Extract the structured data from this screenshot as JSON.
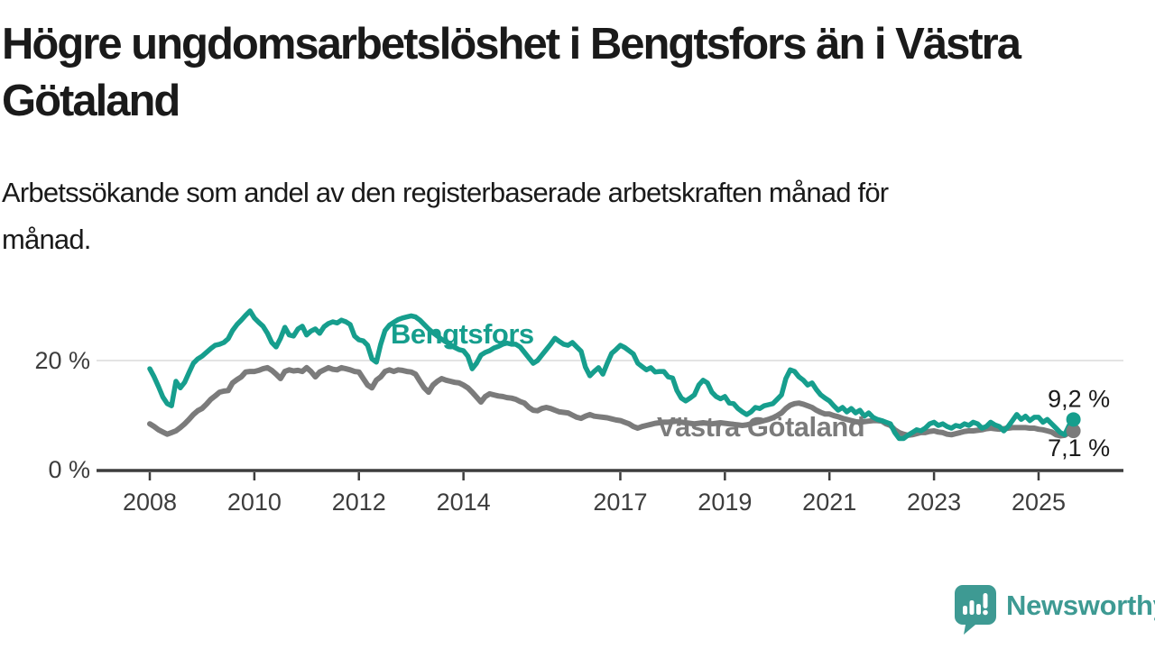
{
  "title": {
    "line1": "Högre ungdomsarbetslöshet i Bengtsfors än i Västra",
    "line2": "Götaland"
  },
  "subtitle": {
    "line1": "Arbetssökande som andel av den registerbaserade arbetskraften månad för",
    "line2": "månad."
  },
  "colors": {
    "teal": "#169e8d",
    "gray": "#7b7b7b",
    "axis": "#3d3d3d",
    "grid": "#dcdcdc",
    "value_label": "#1a1a1a",
    "logo": "#3e9a93"
  },
  "chart_data": {
    "type": "line",
    "unit": "%",
    "frequency": "monthly",
    "x_start": {
      "year": 2008,
      "month": 1
    },
    "x_end": {
      "year": 2025,
      "month": 9
    },
    "ylim": [
      0,
      30
    ],
    "grid_values": [
      20
    ],
    "y_axis_labels": [
      {
        "value": 20,
        "label": "20 %"
      },
      {
        "value": 0,
        "label": "0 %"
      }
    ],
    "x_ticks": [
      {
        "year": 2008,
        "label": "2008"
      },
      {
        "year": 2010,
        "label": "2010"
      },
      {
        "year": 2012,
        "label": "2012"
      },
      {
        "year": 2014,
        "label": "2014"
      },
      {
        "year": 2017,
        "label": "2017"
      },
      {
        "year": 2019,
        "label": "2019"
      },
      {
        "year": 2021,
        "label": "2021"
      },
      {
        "year": 2023,
        "label": "2023"
      },
      {
        "year": 2025,
        "label": "2025"
      }
    ],
    "series": [
      {
        "name": "Västra Götaland",
        "color": "#7b7b7b",
        "end_value": 7.1,
        "end_label": "7,1 %",
        "values": [
          8.4,
          7.9,
          7.3,
          6.9,
          6.5,
          6.8,
          7.1,
          7.7,
          8.4,
          9.2,
          10.1,
          10.8,
          11.2,
          12,
          12.9,
          13.5,
          14.2,
          14.4,
          14.5,
          15.9,
          16.5,
          17,
          17.9,
          18,
          18,
          18.2,
          18.5,
          18.7,
          18.2,
          17.5,
          16.7,
          18,
          18.3,
          18.1,
          18.2,
          18,
          18.7,
          18,
          17,
          17.9,
          18.3,
          18.7,
          18.4,
          18.3,
          18.7,
          18.5,
          18.3,
          18,
          17.9,
          16.7,
          15.5,
          15,
          16.4,
          17,
          18,
          18.3,
          18,
          18.3,
          18.2,
          18,
          17.9,
          17.5,
          16.2,
          15,
          14.2,
          15.5,
          16.2,
          16.7,
          16.4,
          16.2,
          16,
          15.9,
          15.5,
          15,
          14.2,
          13.3,
          12.4,
          13.4,
          13.9,
          13.7,
          13.5,
          13.4,
          13.2,
          13.1,
          12.9,
          12.5,
          12.2,
          11.4,
          10.9,
          10.8,
          11.2,
          11.4,
          11.2,
          10.9,
          10.6,
          10.5,
          10.4,
          10,
          9.6,
          9.4,
          9.8,
          10.1,
          9.8,
          9.7,
          9.6,
          9.5,
          9.3,
          9.1,
          9,
          8.7,
          8.4,
          7.9,
          7.6,
          7.9,
          8.1,
          8.3,
          8.5,
          8.6,
          8.7,
          8.7,
          8.8,
          8.9,
          8.7,
          8.6,
          8.5,
          8.4,
          8.5,
          8.6,
          8.5,
          8.4,
          8.5,
          8.6,
          8.5,
          8.4,
          8.3,
          8.2,
          8.1,
          8.2,
          8.4,
          8.6,
          8.8,
          9,
          9.2,
          9.5,
          9.9,
          10.4,
          11.2,
          11.8,
          12.1,
          12.2,
          12,
          11.7,
          11.4,
          10.9,
          10.5,
          10.2,
          10.2,
          9.9,
          9.7,
          9.4,
          9.2,
          9,
          8.8,
          8.7,
          8.8,
          8.9,
          9,
          9,
          8.9,
          8.4,
          8.1,
          7.3,
          6.8,
          6.5,
          6.3,
          6.4,
          6.6,
          6.8,
          6.8,
          7,
          7.1,
          6.9,
          6.8,
          6.5,
          6.4,
          6.6,
          6.8,
          7,
          7.1,
          7.1,
          7.2,
          7.3,
          7.5,
          7.6,
          7.5,
          7.4,
          7.5,
          7.6,
          7.7,
          7.7,
          7.7,
          7.7,
          7.6,
          7.6,
          7.4,
          7.3,
          7.1,
          6.9,
          6.4,
          6.2,
          6.3,
          6.8,
          7.1
        ]
      },
      {
        "name": "Bengtsfors",
        "color": "#169e8d",
        "end_value": 9.2,
        "end_label": "9,2 %",
        "values": [
          18.5,
          17,
          15.2,
          13.3,
          12.1,
          11.7,
          16.2,
          15,
          16,
          17.8,
          19.5,
          20.3,
          20.8,
          21.5,
          22.2,
          22.8,
          23,
          23.3,
          24,
          25.5,
          26.6,
          27.4,
          28.3,
          29.1,
          27.8,
          27,
          26.3,
          25,
          23.3,
          22.5,
          24.1,
          26.1,
          24.7,
          24.5,
          25.8,
          26.3,
          24.7,
          25.4,
          25.8,
          25,
          26.2,
          26.8,
          27.1,
          26.9,
          27.4,
          27.1,
          26.6,
          24.5,
          23.8,
          23.6,
          22.8,
          20.3,
          19.7,
          23,
          25.5,
          26.5,
          27,
          27.5,
          27.8,
          28,
          28.2,
          28,
          27.4,
          26.6,
          25.8,
          25.1,
          24.5,
          23.9,
          23.4,
          22.9,
          22.4,
          22,
          21.8,
          20.8,
          18.5,
          19.5,
          21,
          21.5,
          21.8,
          22.3,
          22.6,
          23,
          23.2,
          23,
          23,
          22.5,
          21.5,
          20.5,
          19.5,
          20,
          21,
          22,
          23,
          24.1,
          23.5,
          23,
          22.8,
          23.3,
          22.5,
          21.7,
          18.8,
          17.2,
          18,
          18.7,
          17.5,
          19.5,
          21.3,
          22,
          22.8,
          22.4,
          21.8,
          21.2,
          19.5,
          18.9,
          18.3,
          18.7,
          17.9,
          18,
          18,
          17,
          16.8,
          14.5,
          13.1,
          12.6,
          13.1,
          13.7,
          15.5,
          16.4,
          15.9,
          14.2,
          13.4,
          13,
          13.4,
          12.2,
          12.1,
          11.2,
          10.6,
          10.1,
          10.6,
          11.4,
          11.2,
          11.7,
          11.9,
          12.1,
          12.9,
          13.7,
          16.7,
          18.3,
          18,
          17,
          16.4,
          15.5,
          15.9,
          14.7,
          13.7,
          13.1,
          12.6,
          11.7,
          10.9,
          11.4,
          10.6,
          11.2,
          10.4,
          10.9,
          9.8,
          10.4,
          9.6,
          9.2,
          9,
          8.7,
          8.4,
          6.8,
          5.7,
          5.7,
          6.3,
          6.8,
          7.3,
          7.1,
          7.6,
          8.4,
          8.7,
          8.1,
          8.4,
          7.9,
          7.6,
          8.1,
          7.9,
          8.4,
          8.1,
          8.7,
          8.4,
          7.6,
          7.9,
          8.7,
          8.2,
          7.9,
          7.1,
          7.9,
          9,
          10.1,
          9.2,
          9.8,
          9,
          9.6,
          9.6,
          8.7,
          9.2,
          8.4,
          7.6,
          6.8,
          6.4,
          8.1,
          9.2
        ]
      }
    ]
  },
  "branding": {
    "logo_text": "Newsworthy"
  }
}
